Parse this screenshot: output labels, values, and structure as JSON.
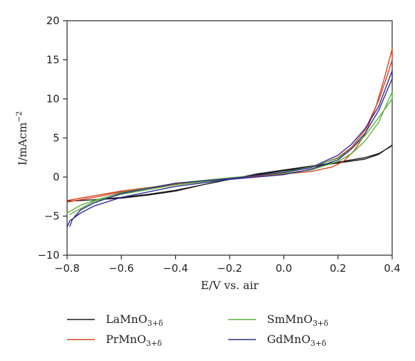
{
  "chart_data": {
    "type": "line",
    "title": "",
    "xlabel": "E/V vs. air",
    "ylabel": "I/mAcm",
    "ylabel_sup": "−2",
    "xlim": [
      -0.8,
      0.4
    ],
    "ylim": [
      -10,
      20
    ],
    "xticks": [
      -0.8,
      -0.6,
      -0.4,
      -0.2,
      0.0,
      0.2,
      0.4
    ],
    "xtick_labels": [
      "−0.8",
      "−0.6",
      "−0.4",
      "−0.2",
      "0.0",
      "0.2",
      "0.4"
    ],
    "yticks": [
      -10,
      -5,
      0,
      5,
      10,
      15,
      20
    ],
    "ytick_labels": [
      "−10",
      "−5",
      "0",
      "5",
      "10",
      "15",
      "20"
    ],
    "grid": false,
    "legend_position": "bottom",
    "series": [
      {
        "name": "LaMnO",
        "name_sub": "3+δ",
        "color": "#1a1a1a",
        "x": [
          -0.8,
          -0.7,
          -0.6,
          -0.5,
          -0.4,
          -0.3,
          -0.2,
          -0.1,
          0.0,
          0.1,
          0.2,
          0.3,
          0.35,
          0.4,
          0.39,
          0.35,
          0.3,
          0.2,
          0.1,
          0.0,
          -0.1,
          -0.2,
          -0.3,
          -0.4,
          -0.5,
          -0.6,
          -0.7,
          -0.8
        ],
        "y": [
          -3.1,
          -2.9,
          -2.7,
          -2.3,
          -1.8,
          -1.0,
          -0.3,
          0.3,
          0.8,
          1.3,
          1.8,
          2.3,
          2.9,
          4.1,
          3.8,
          3.0,
          2.5,
          1.9,
          1.4,
          0.9,
          0.4,
          -0.3,
          -1.0,
          -1.7,
          -2.2,
          -2.6,
          -2.9,
          -3.1
        ]
      },
      {
        "name": "PrMnO",
        "name_sub": "3+δ",
        "color": "#d4411e",
        "x": [
          -0.8,
          -0.7,
          -0.6,
          -0.4,
          -0.2,
          0.0,
          0.1,
          0.18,
          0.22,
          0.26,
          0.3,
          0.34,
          0.37,
          0.4,
          0.4,
          0.38,
          0.35,
          0.3,
          0.25,
          0.2,
          0.1,
          0.0,
          -0.2,
          -0.4,
          -0.6,
          -0.7,
          -0.8
        ],
        "y": [
          -3.0,
          -2.4,
          -1.8,
          -0.9,
          -0.2,
          0.4,
          0.7,
          1.3,
          2.0,
          3.4,
          5.5,
          9.0,
          12.5,
          16.4,
          15.0,
          12.8,
          9.8,
          6.0,
          3.8,
          2.5,
          1.2,
          0.6,
          -0.2,
          -1.0,
          -1.9,
          -2.6,
          -3.2
        ]
      },
      {
        "name": "SmMnO",
        "name_sub": "3+δ",
        "color": "#5aae3a",
        "x": [
          -0.8,
          -0.75,
          -0.7,
          -0.6,
          -0.4,
          -0.2,
          0.0,
          0.1,
          0.2,
          0.25,
          0.3,
          0.35,
          0.4,
          0.4,
          0.35,
          0.3,
          0.25,
          0.2,
          0.1,
          0.0,
          -0.2,
          -0.4,
          -0.6,
          -0.7,
          -0.79
        ],
        "y": [
          -4.6,
          -3.6,
          -3.0,
          -2.0,
          -0.8,
          -0.1,
          0.5,
          0.9,
          2.0,
          3.0,
          4.6,
          7.0,
          10.9,
          10.0,
          7.6,
          5.3,
          3.6,
          2.4,
          1.3,
          0.6,
          -0.2,
          -1.0,
          -2.2,
          -3.1,
          -4.8
        ]
      },
      {
        "name": "GdMnO",
        "name_sub": "3+δ",
        "color": "#2b2b8f",
        "x": [
          -0.79,
          -0.78,
          -0.75,
          -0.7,
          -0.6,
          -0.4,
          -0.2,
          0.0,
          0.1,
          0.2,
          0.25,
          0.3,
          0.35,
          0.4,
          0.4,
          0.35,
          0.3,
          0.25,
          0.2,
          0.1,
          0.0,
          -0.2,
          -0.4,
          -0.6,
          -0.7,
          -0.75,
          -0.79,
          -0.8
        ],
        "y": [
          -6.3,
          -5.4,
          -4.2,
          -3.3,
          -2.1,
          -0.8,
          -0.2,
          0.6,
          1.2,
          2.8,
          4.2,
          6.2,
          9.0,
          13.6,
          12.6,
          8.5,
          5.6,
          3.6,
          2.2,
          1.0,
          0.3,
          -0.3,
          -1.2,
          -2.6,
          -3.7,
          -4.6,
          -5.6,
          -6.4
        ]
      }
    ]
  }
}
